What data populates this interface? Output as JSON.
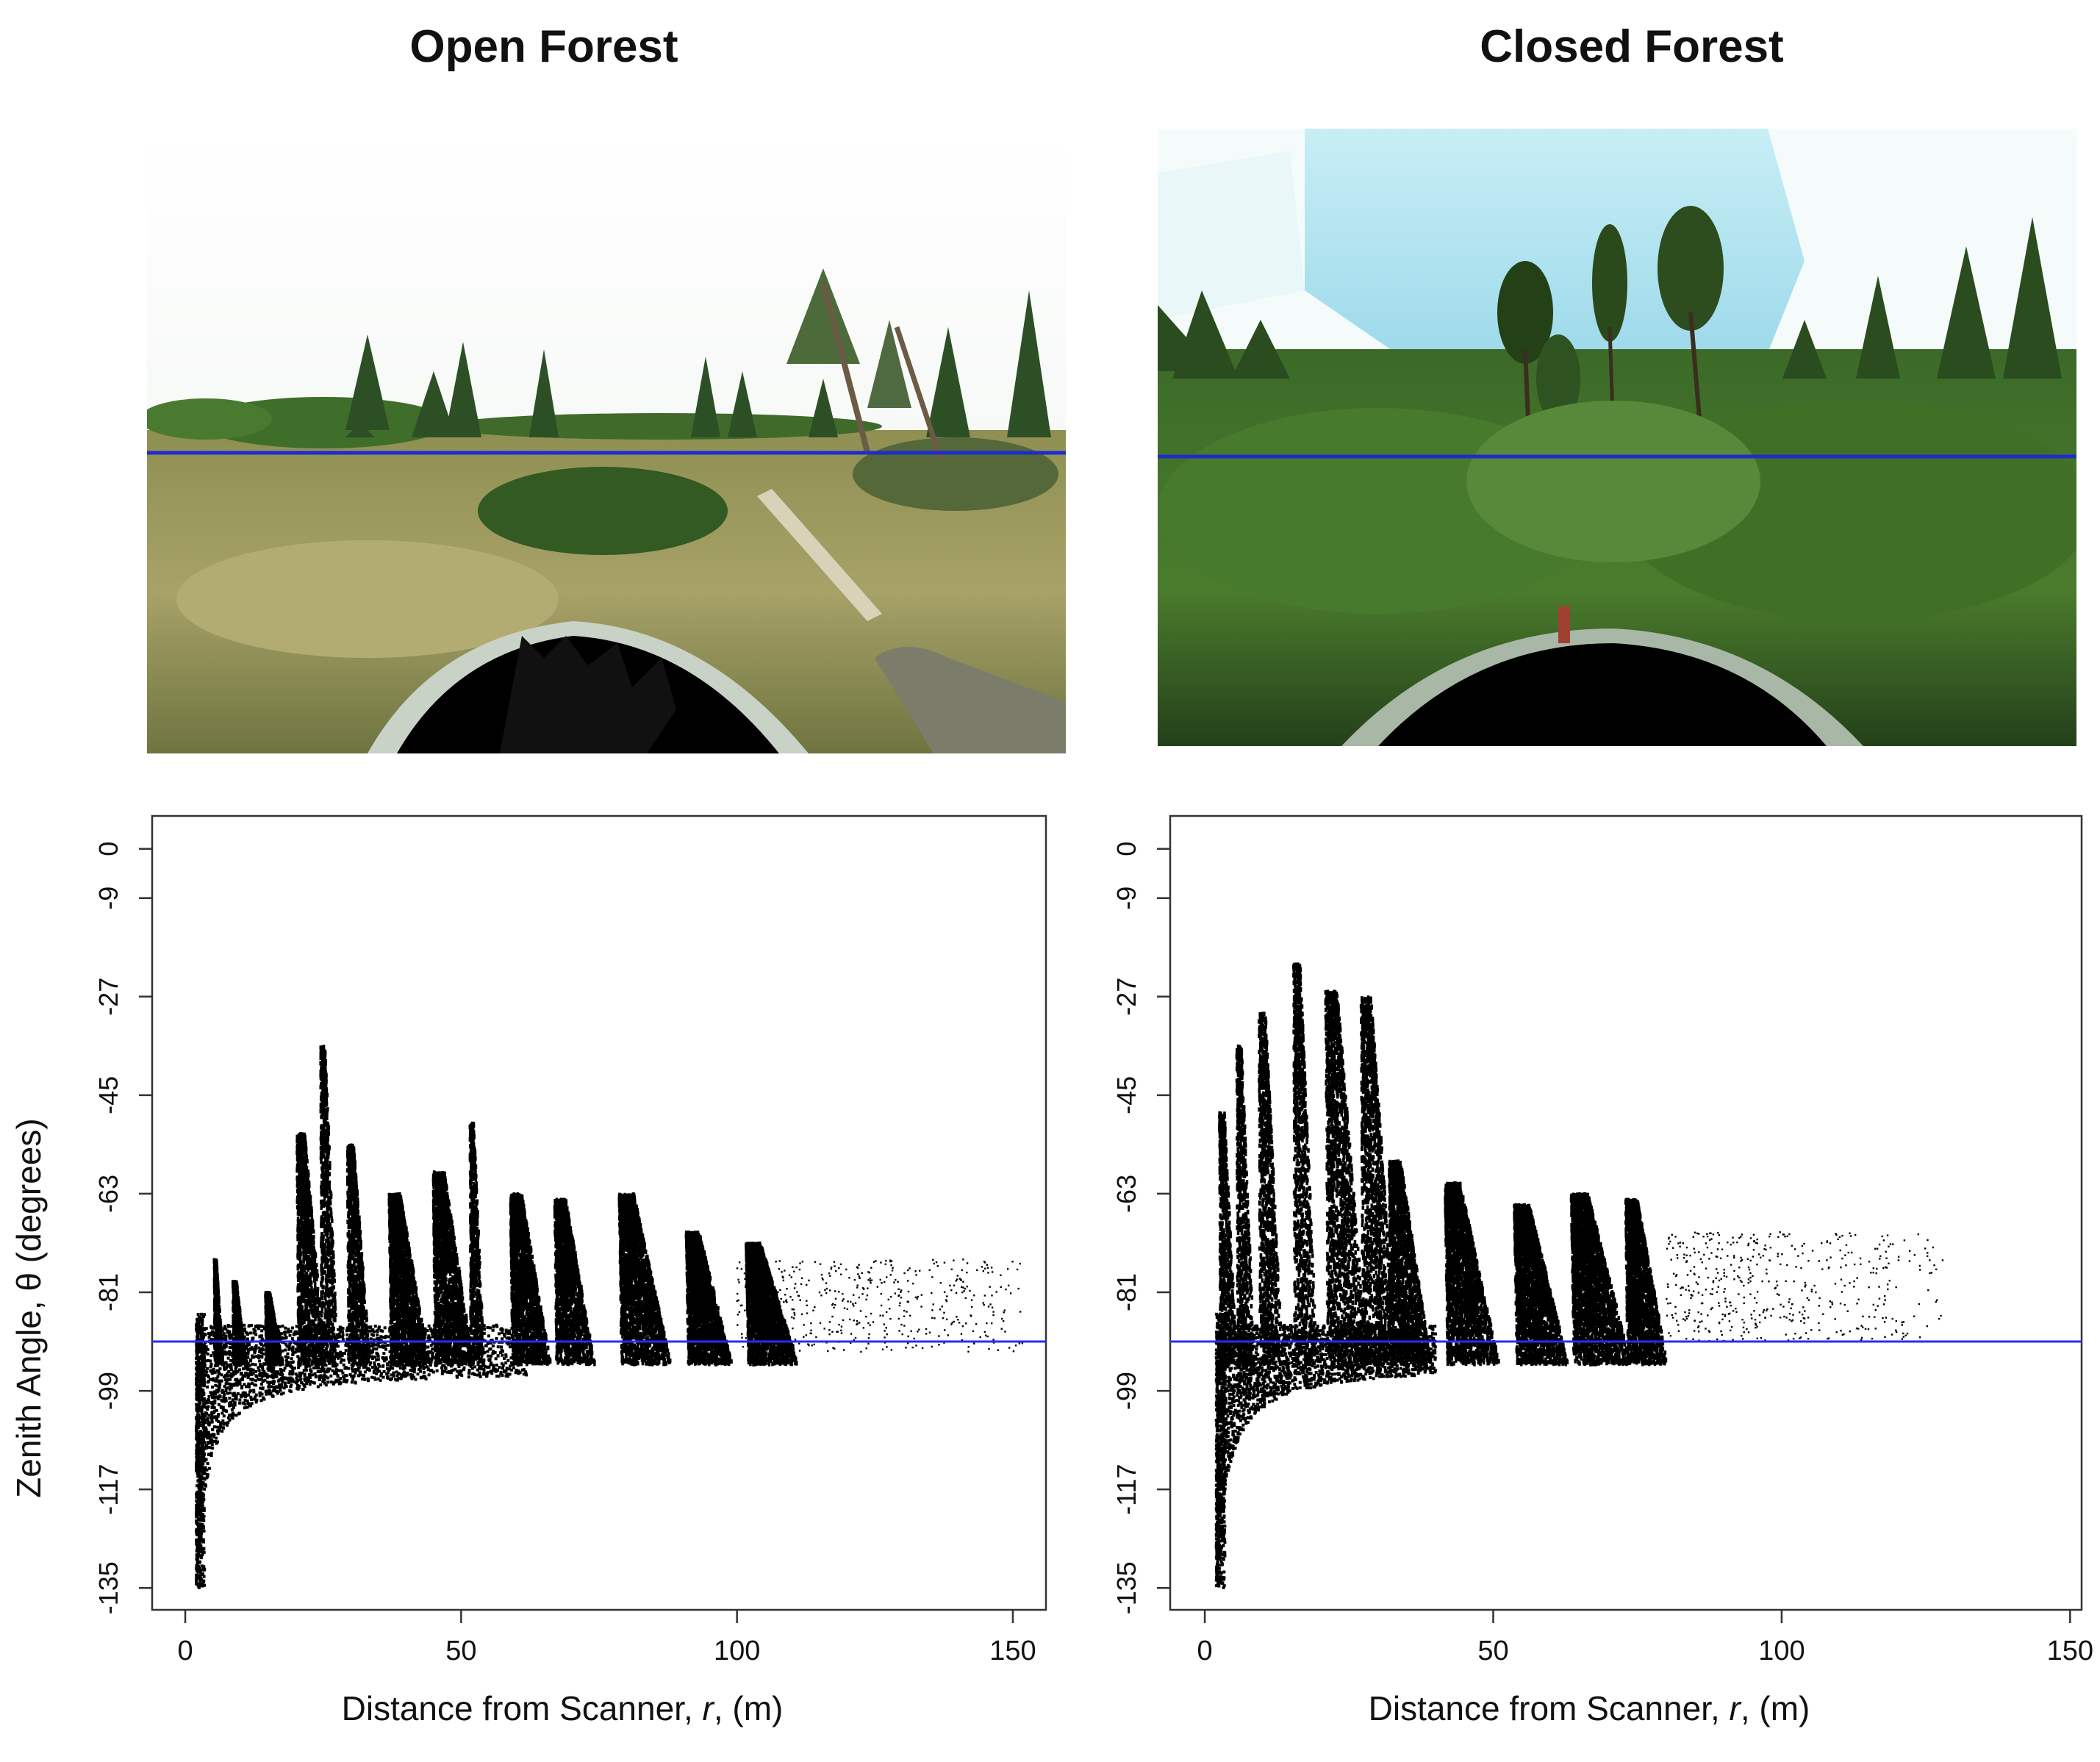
{
  "titles": [
    "Open Forest",
    "Closed Forest"
  ],
  "ylabel": "Zenith Angle, θ (degrees)",
  "xlabel_parts": {
    "pre": "Distance  from  Scanner, ",
    "italic": "r",
    "post": ", (m)"
  },
  "colors": {
    "points": "#000000",
    "horizon_line": "#2a2aff",
    "frame": "#333333",
    "sky_open": "#f6f9f4",
    "sky_closed": "#cdeff4",
    "grass": "#9a9a58",
    "foliage": "#3c6a22"
  },
  "chart_data": [
    {
      "type": "scatter",
      "title": "Open Forest",
      "xlabel": "Distance from Scanner, r, (m)",
      "ylabel": "Zenith Angle, θ (degrees)",
      "xticks": [
        0,
        50,
        100,
        150
      ],
      "yticks": [
        0,
        -9,
        -27,
        -45,
        -63,
        -81,
        -99,
        -117,
        -135
      ],
      "xlim": [
        -6,
        156
      ],
      "ylim": [
        -139,
        6
      ],
      "horizon_line_y": -90,
      "ground_curve": {
        "r_min": 2,
        "r_max": 62,
        "theta_at_r_min": -135,
        "theta_limit": -95
      },
      "tree_crowns": [
        {
          "r": 2.5,
          "top": -96,
          "width": 1.2
        },
        {
          "r": 5.5,
          "top": -75,
          "width": 1.6
        },
        {
          "r": 9,
          "top": -79,
          "width": 2.4
        },
        {
          "r": 15,
          "top": -81,
          "width": 3.0
        },
        {
          "r": 21,
          "top": -52,
          "width": 5.0
        },
        {
          "r": 25,
          "top": -36,
          "width": 3.0
        },
        {
          "r": 30,
          "top": -54,
          "width": 4.0
        },
        {
          "r": 38,
          "top": -63,
          "width": 7.0
        },
        {
          "r": 46,
          "top": -59,
          "width": 7.0
        },
        {
          "r": 52,
          "top": -50,
          "width": 2.5
        },
        {
          "r": 60,
          "top": -63,
          "width": 7.0
        },
        {
          "r": 68,
          "top": -64,
          "width": 7.0
        },
        {
          "r": 80,
          "top": -63,
          "width": 9.0
        },
        {
          "r": 92,
          "top": -70,
          "width": 8.0
        },
        {
          "r": 103,
          "top": -72,
          "width": 9.0
        }
      ],
      "sparse_region": {
        "r_min": 100,
        "r_max": 152,
        "theta_min": -92,
        "theta_max": -75
      }
    },
    {
      "type": "scatter",
      "title": "Closed Forest",
      "xlabel": "Distance from Scanner, r, (m)",
      "ylabel": "Zenith Angle, θ (degrees)",
      "xticks": [
        0,
        50,
        100,
        150
      ],
      "yticks": [
        0,
        -9,
        -27,
        -45,
        -63,
        -81,
        -99,
        -117,
        -135
      ],
      "xlim": [
        -6,
        152
      ],
      "ylim": [
        -139,
        6
      ],
      "horizon_line_y": -90,
      "ground_curve": {
        "r_min": 2,
        "r_max": 40,
        "theta_at_r_min": -135,
        "theta_limit": -94
      },
      "tree_crowns": [
        {
          "r": 3,
          "top": -48,
          "width": 3.0
        },
        {
          "r": 6,
          "top": -36,
          "width": 3.0
        },
        {
          "r": 10,
          "top": -30,
          "width": 4.0
        },
        {
          "r": 16,
          "top": -21,
          "width": 4.0
        },
        {
          "r": 22,
          "top": -26,
          "width": 7.0
        },
        {
          "r": 28,
          "top": -27,
          "width": 6.0
        },
        {
          "r": 33,
          "top": -57,
          "width": 7.0
        },
        {
          "r": 43,
          "top": -61,
          "width": 9.0
        },
        {
          "r": 55,
          "top": -65,
          "width": 9.0
        },
        {
          "r": 65,
          "top": -63,
          "width": 10.0
        },
        {
          "r": 74,
          "top": -64,
          "width": 7.0
        }
      ],
      "sparse_region": {
        "r_min": 80,
        "r_max": 128,
        "theta_min": -90,
        "theta_max": -70
      }
    }
  ]
}
